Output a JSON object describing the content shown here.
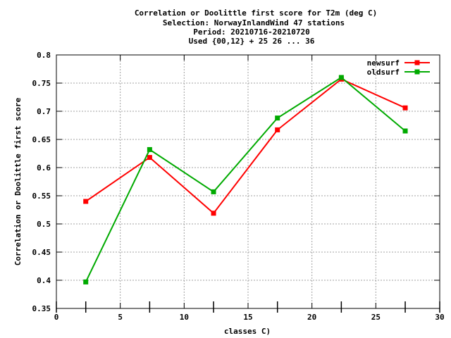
{
  "chart_data": {
    "type": "line",
    "title_lines": [
      "Correlation or Doolittle first score  for T2m (deg C)",
      "Selection: NorwayInlandWind     47 stations",
      "Period: 20210716-20210720",
      "Used {00,12} + 25 26 ... 36"
    ],
    "xlabel": "classes C)",
    "ylabel": "Correlation or Doolittle first score",
    "xlim": [
      0,
      30
    ],
    "ylim": [
      0.35,
      0.8
    ],
    "xticks": [
      "0",
      "5",
      "10",
      "15",
      "20",
      "25",
      "30"
    ],
    "yticks": [
      "0.35",
      "0.4",
      "0.45",
      "0.5",
      "0.55",
      "0.6",
      "0.65",
      "0.7",
      "0.75",
      "0.8"
    ],
    "grid": true,
    "legend_position": "top-right",
    "x": [
      2.3,
      7.3,
      12.3,
      17.3,
      22.3,
      27.3
    ],
    "series": [
      {
        "name": "newsurf",
        "color": "#ff0000",
        "values": [
          0.54,
          0.618,
          0.519,
          0.667,
          0.757,
          0.706
        ]
      },
      {
        "name": "oldsurf",
        "color": "#00aa00",
        "values": [
          0.397,
          0.632,
          0.557,
          0.688,
          0.76,
          0.665
        ]
      }
    ]
  }
}
